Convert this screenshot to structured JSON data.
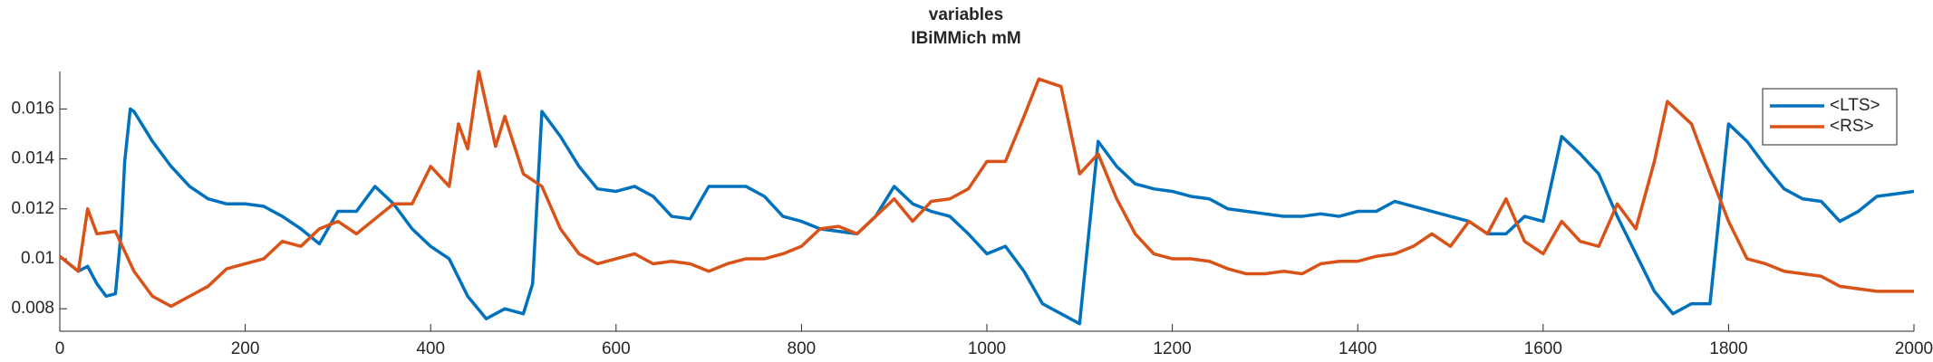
{
  "chart_data": {
    "type": "line",
    "title": "variables",
    "subtitle": "IBiMMich mM",
    "xlim": [
      0,
      2000
    ],
    "xticks": [
      0,
      200,
      400,
      600,
      800,
      1000,
      1200,
      1400,
      1600,
      1800,
      2000
    ],
    "ylim": [
      0.0071,
      0.0175
    ],
    "yticks": [
      0.008,
      0.01,
      0.012,
      0.014,
      0.016
    ],
    "legend": "upper right",
    "series": [
      {
        "name": "<LTS>",
        "color": "#0072bd",
        "x": [
          0,
          20,
          30,
          40,
          50,
          60,
          66,
          70,
          76,
          80,
          100,
          120,
          140,
          160,
          180,
          200,
          220,
          240,
          260,
          280,
          300,
          320,
          340,
          360,
          380,
          400,
          420,
          440,
          460,
          480,
          500,
          510,
          520,
          540,
          560,
          580,
          600,
          620,
          640,
          660,
          680,
          700,
          720,
          740,
          760,
          780,
          800,
          820,
          840,
          860,
          880,
          900,
          920,
          940,
          960,
          980,
          1000,
          1020,
          1040,
          1060,
          1080,
          1100,
          1120,
          1140,
          1160,
          1180,
          1200,
          1220,
          1240,
          1260,
          1280,
          1300,
          1320,
          1340,
          1360,
          1380,
          1400,
          1420,
          1440,
          1460,
          1480,
          1500,
          1520,
          1540,
          1560,
          1580,
          1600,
          1620,
          1640,
          1660,
          1680,
          1700,
          1720,
          1740,
          1760,
          1780,
          1800,
          1820,
          1840,
          1860,
          1880,
          1900,
          1920,
          1940,
          1960,
          1980,
          2000
        ],
        "values": [
          0.0101,
          0.0095,
          0.0097,
          0.009,
          0.0085,
          0.0086,
          0.011,
          0.0139,
          0.016,
          0.0159,
          0.0147,
          0.0137,
          0.0129,
          0.0124,
          0.0122,
          0.0122,
          0.0121,
          0.0117,
          0.0112,
          0.0106,
          0.0119,
          0.0119,
          0.0129,
          0.0122,
          0.0112,
          0.0105,
          0.01,
          0.0085,
          0.0076,
          0.008,
          0.0078,
          0.009,
          0.0159,
          0.0149,
          0.0137,
          0.0128,
          0.0127,
          0.0129,
          0.0125,
          0.0117,
          0.0116,
          0.0129,
          0.0129,
          0.0129,
          0.0125,
          0.0117,
          0.0115,
          0.0112,
          0.0111,
          0.011,
          0.0117,
          0.0129,
          0.0122,
          0.0119,
          0.0117,
          0.011,
          0.0102,
          0.0105,
          0.0095,
          0.0082,
          0.0078,
          0.0074,
          0.0147,
          0.0137,
          0.013,
          0.0128,
          0.0127,
          0.0125,
          0.0124,
          0.012,
          0.0119,
          0.0118,
          0.0117,
          0.0117,
          0.0118,
          0.0117,
          0.0119,
          0.0119,
          0.0123,
          0.0121,
          0.0119,
          0.0117,
          0.0115,
          0.011,
          0.011,
          0.0117,
          0.0115,
          0.0149,
          0.0142,
          0.0134,
          0.0117,
          0.0102,
          0.0087,
          0.0078,
          0.0082,
          0.0082,
          0.0154,
          0.0147,
          0.0137,
          0.0128,
          0.0124,
          0.0123,
          0.0115,
          0.0119,
          0.0125,
          0.0126,
          0.0127
        ]
      },
      {
        "name": "<RS>",
        "color": "#d95319",
        "x": [
          0,
          20,
          30,
          40,
          60,
          80,
          100,
          120,
          140,
          160,
          180,
          200,
          220,
          240,
          260,
          280,
          300,
          320,
          340,
          360,
          380,
          400,
          420,
          430,
          440,
          452,
          470,
          480,
          500,
          520,
          540,
          560,
          580,
          600,
          620,
          640,
          660,
          680,
          700,
          720,
          740,
          760,
          780,
          800,
          820,
          840,
          860,
          880,
          900,
          920,
          940,
          960,
          980,
          1000,
          1020,
          1040,
          1056,
          1080,
          1100,
          1120,
          1140,
          1160,
          1180,
          1200,
          1220,
          1240,
          1260,
          1280,
          1300,
          1320,
          1340,
          1360,
          1380,
          1400,
          1420,
          1440,
          1460,
          1480,
          1500,
          1520,
          1540,
          1560,
          1580,
          1600,
          1620,
          1640,
          1660,
          1680,
          1700,
          1720,
          1734,
          1760,
          1780,
          1800,
          1820,
          1840,
          1860,
          1880,
          1900,
          1920,
          1940,
          1960,
          1980,
          2000
        ],
        "values": [
          0.0101,
          0.0095,
          0.012,
          0.011,
          0.0111,
          0.0095,
          0.0085,
          0.0081,
          0.0085,
          0.0089,
          0.0096,
          0.0098,
          0.01,
          0.0107,
          0.0105,
          0.0112,
          0.0115,
          0.011,
          0.0116,
          0.0122,
          0.0122,
          0.0137,
          0.0129,
          0.0154,
          0.0144,
          0.0175,
          0.0145,
          0.0157,
          0.0134,
          0.0129,
          0.0112,
          0.0102,
          0.0098,
          0.01,
          0.0102,
          0.0098,
          0.0099,
          0.0098,
          0.0095,
          0.0098,
          0.01,
          0.01,
          0.0102,
          0.0105,
          0.0112,
          0.0113,
          0.011,
          0.0117,
          0.0124,
          0.0115,
          0.0123,
          0.0124,
          0.0128,
          0.0139,
          0.0139,
          0.0157,
          0.0172,
          0.0169,
          0.0134,
          0.0142,
          0.0124,
          0.011,
          0.0102,
          0.01,
          0.01,
          0.0099,
          0.0096,
          0.0094,
          0.0094,
          0.0095,
          0.0094,
          0.0098,
          0.0099,
          0.0099,
          0.0101,
          0.0102,
          0.0105,
          0.011,
          0.0105,
          0.0115,
          0.011,
          0.0124,
          0.0107,
          0.0102,
          0.0115,
          0.0107,
          0.0105,
          0.0122,
          0.0112,
          0.0139,
          0.0163,
          0.0154,
          0.0134,
          0.0115,
          0.01,
          0.0098,
          0.0095,
          0.0094,
          0.0093,
          0.0089,
          0.0088,
          0.0087,
          0.0087,
          0.0087
        ]
      }
    ]
  }
}
